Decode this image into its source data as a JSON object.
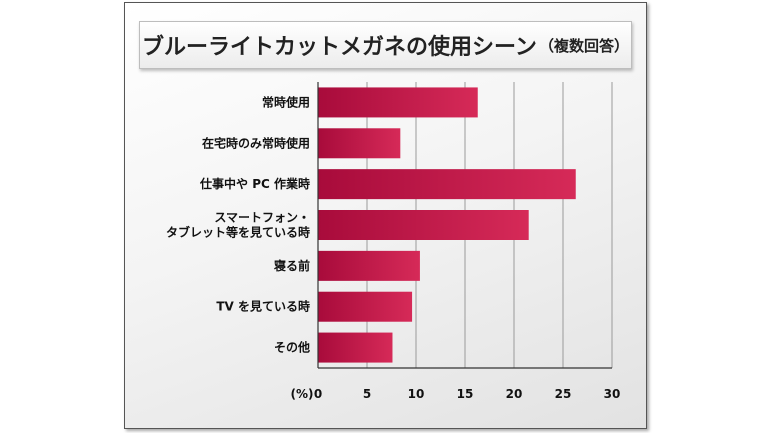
{
  "title": "ブルーライトカットメガネの使用シーン",
  "subtitle": "（複数回答）",
  "chart_data": {
    "type": "bar",
    "orientation": "horizontal",
    "categories": [
      [
        "常時使用"
      ],
      [
        "在宅時のみ常時使用"
      ],
      [
        "仕事中や PC 作業時"
      ],
      [
        "スマートフォン・",
        "タブレット等を見ている時"
      ],
      [
        "寝る前"
      ],
      [
        "TV を見ている時"
      ],
      [
        "その他"
      ]
    ],
    "values": [
      16.3,
      8.4,
      26.3,
      21.5,
      10.4,
      9.6,
      7.6
    ],
    "xlim": [
      0,
      30
    ],
    "xticks": [
      0,
      5,
      10,
      15,
      20,
      25,
      30
    ],
    "unit_label": "(%)",
    "grid": true,
    "bar_color_start": "#a80b3b",
    "bar_color_end": "#d62a58"
  }
}
